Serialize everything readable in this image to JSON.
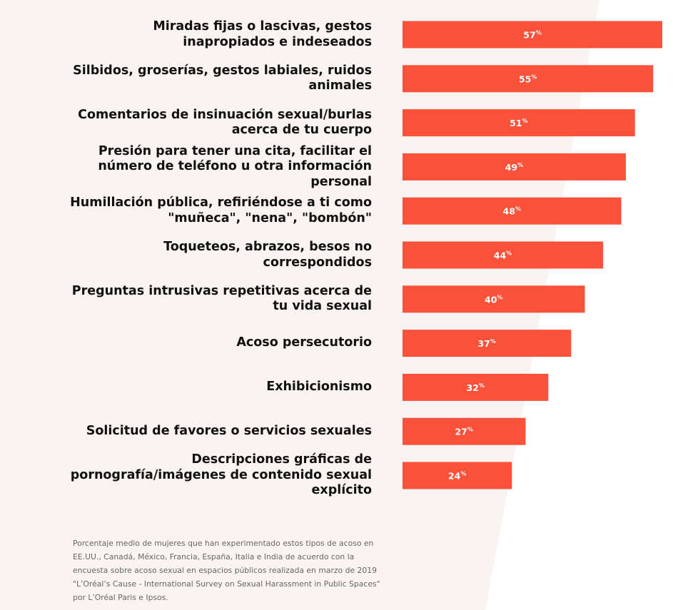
{
  "chart_data": {
    "type": "bar",
    "orientation": "horizontal",
    "categories": [
      "Miradas fijas o lascivas, gestos\ninapropiados e indeseados",
      "Silbidos, groserías, gestos labiales, ruidos\nanimales",
      "Comentarios de insinuación sexual/burlas\nacerca de tu cuerpo",
      "Presión para tener una cita, facilitar el\nnúmero de teléfono u otra información\npersonal",
      "Humillación pública, refiriéndose a ti como\n\"muñeca\", \"nena\", \"bombón\"",
      "Toqueteos, abrazos, besos no\ncorrespondidos",
      "Preguntas intrusivas repetitivas acerca de\ntu vida sexual",
      "Acoso persecutorio",
      "Exhibicionismo",
      "Solicitud de favores o servicios sexuales",
      "Descripciones gráficas de\npornografía/imágenes de contenido sexual\nexplícito"
    ],
    "values": [
      57,
      55,
      51,
      49,
      48,
      44,
      40,
      37,
      32,
      27,
      24
    ],
    "value_suffix": "%",
    "bar_color": "#fa513a",
    "xlim": [
      0,
      57
    ],
    "grid": false,
    "legend": "none"
  },
  "colors": {
    "background_band": "#f9f4f1",
    "bar": "#fa513a",
    "label_text": "#111111",
    "note_text": "#666666"
  },
  "footnote": "Porcentaje medio de mujeres que han experimentado estos tipos de acoso en\nEE.UU., Canadá, México, Francia, España, Italia e India de acuerdo con la\nencuesta sobre acoso sexual en espacios públicos realizada en marzo de 2019\n\"L’Oréal’s Cause - International Survey on Sexual Harassment in Public Spaces\"\npor L’Oréal Paris e Ipsos."
}
